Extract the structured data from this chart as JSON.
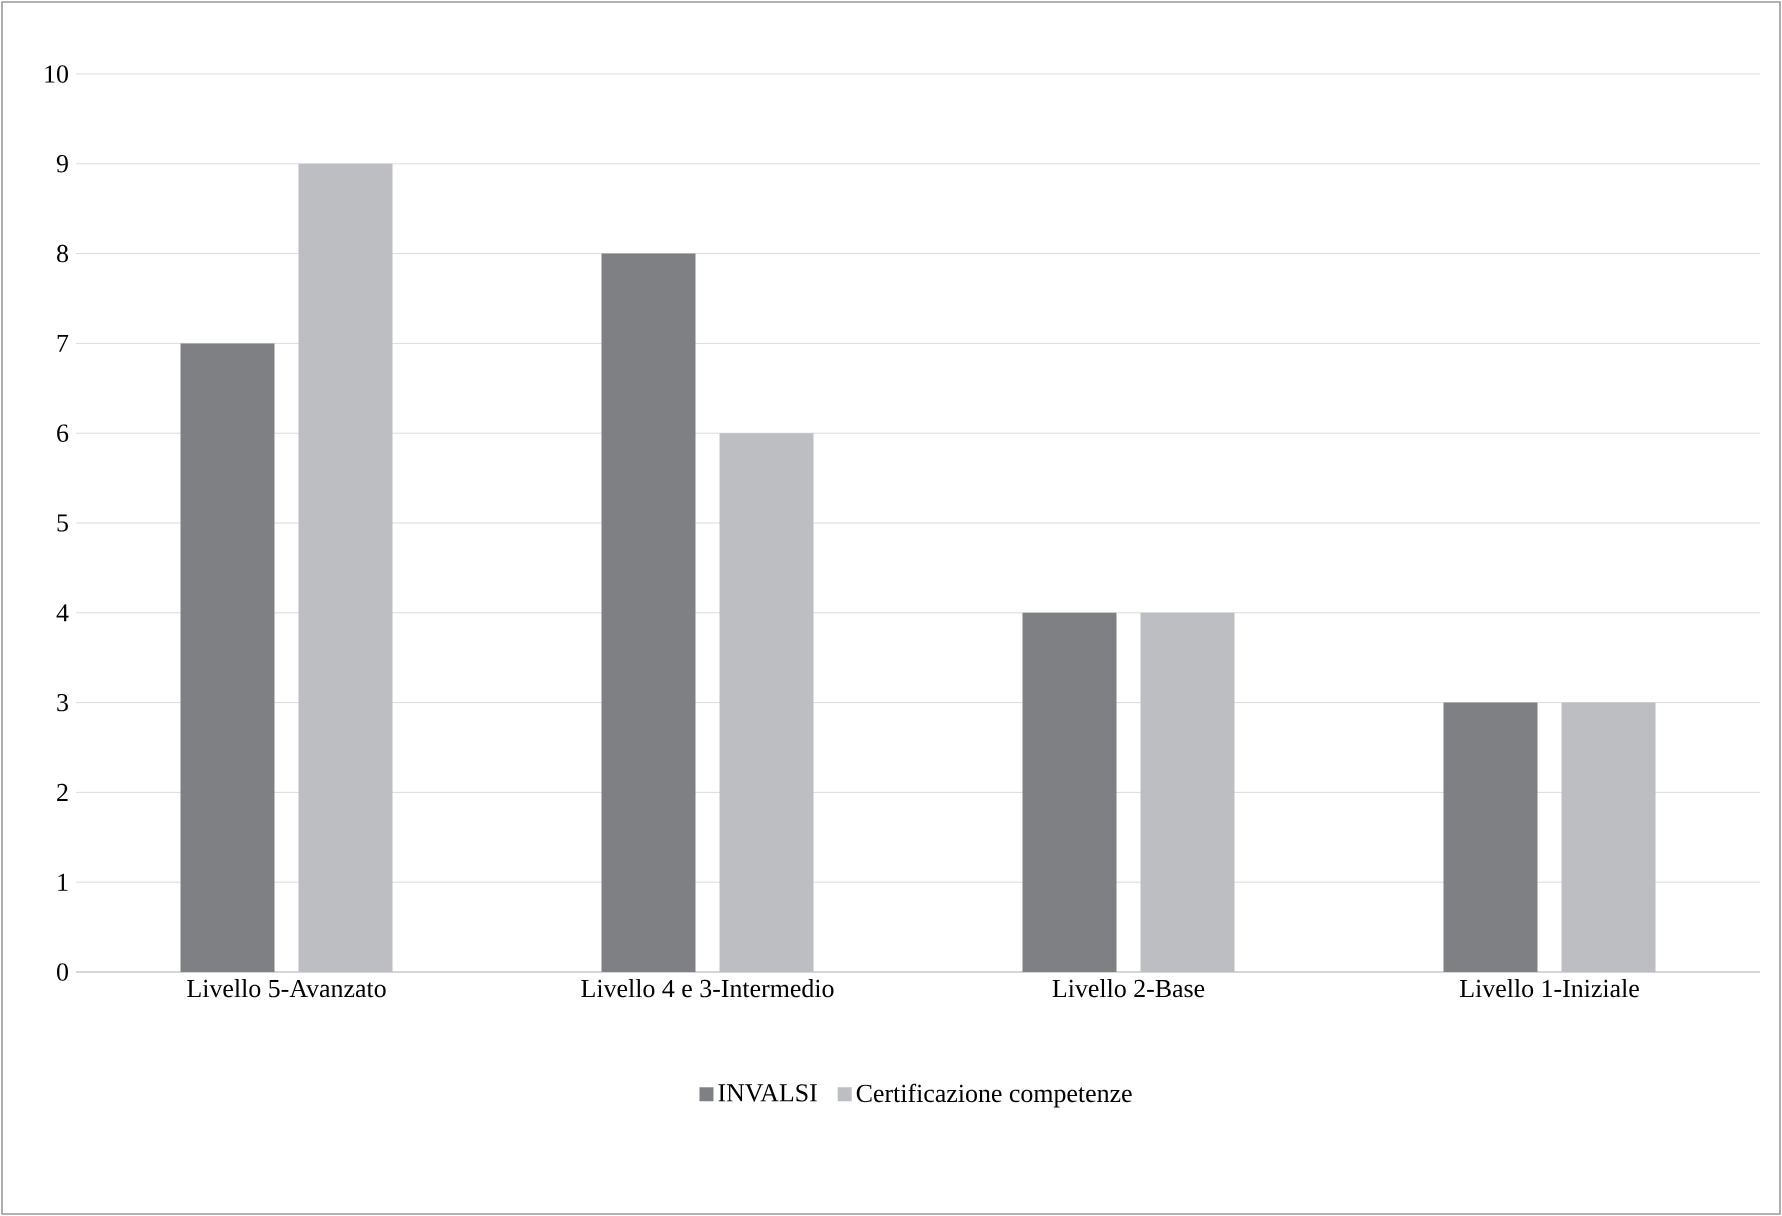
{
  "chart_data": {
    "type": "bar",
    "categories": [
      "Livello 5-Avanzato",
      "Livello 4 e 3-Intermedio",
      "Livello 2-Base",
      "Livello 1-Iniziale"
    ],
    "series": [
      {
        "name": "INVALSI",
        "color": "#7f8084",
        "values": [
          7,
          8,
          4,
          3
        ]
      },
      {
        "name": "Certificazione competenze",
        "color": "#bdbec2",
        "values": [
          9,
          6,
          4,
          3
        ]
      }
    ],
    "ylim": [
      0,
      10
    ],
    "yticks": [
      0,
      1,
      2,
      3,
      4,
      5,
      6,
      7,
      8,
      9,
      10
    ],
    "grid": "y",
    "legend": "bottom"
  }
}
